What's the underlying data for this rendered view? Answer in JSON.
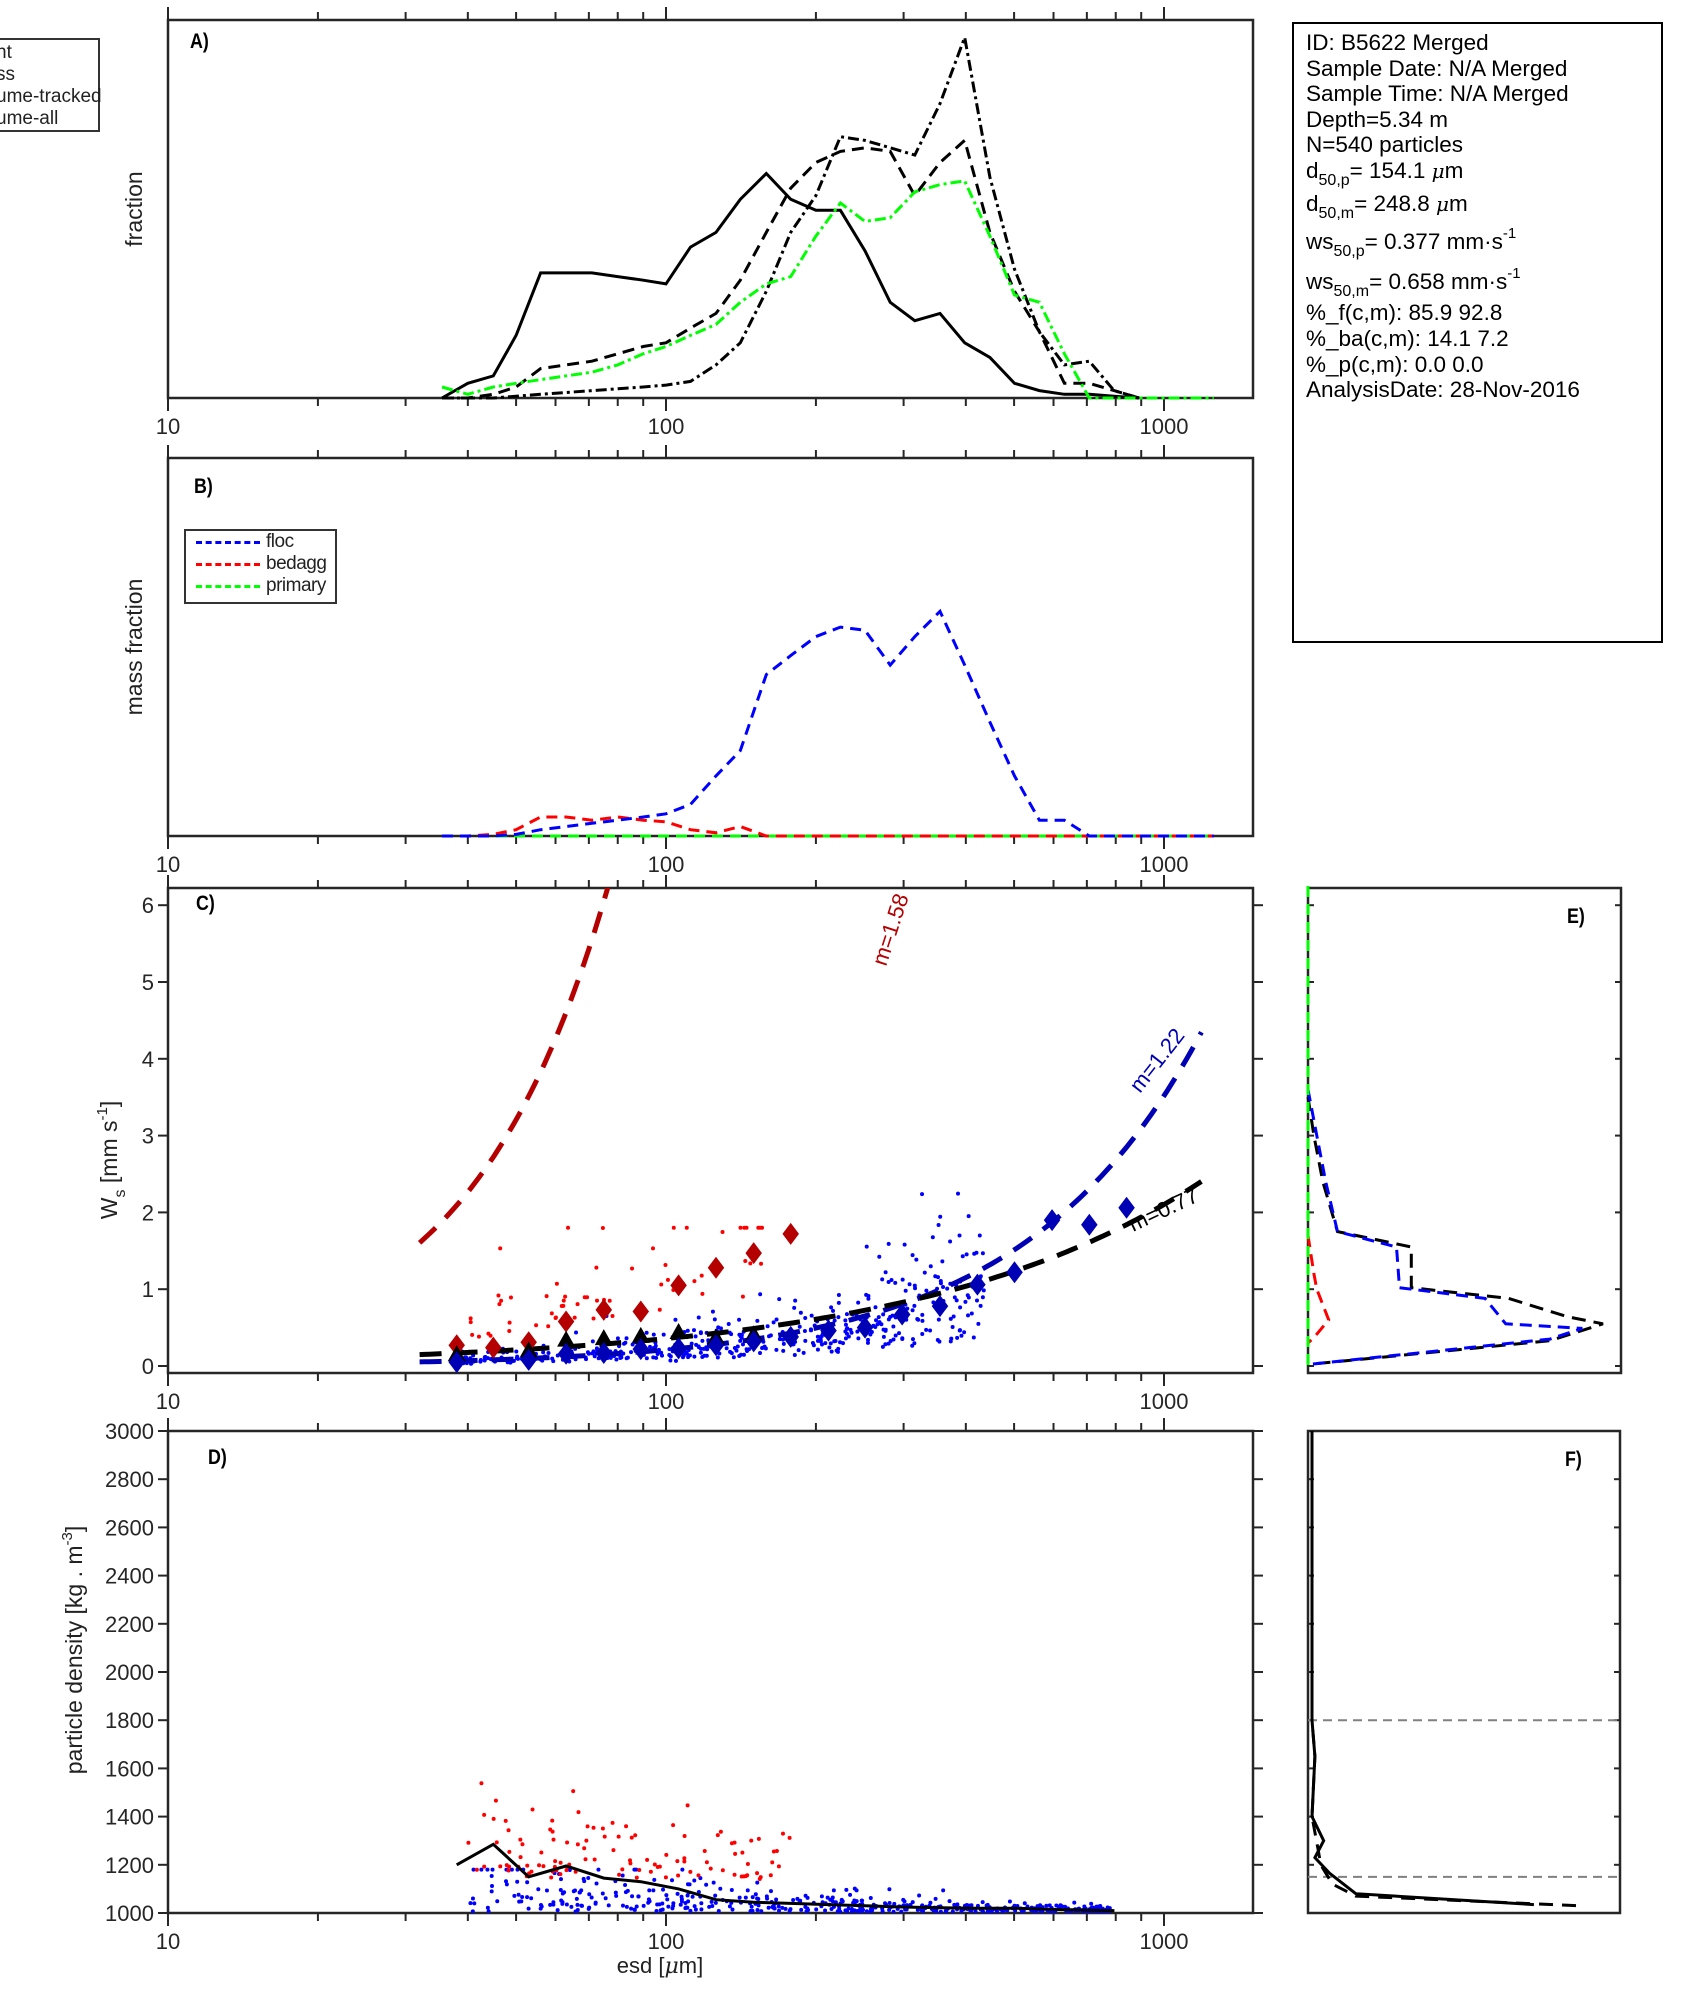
{
  "info": {
    "id": "ID: B5622 Merged",
    "sample_date": "Sample Date: N/A Merged",
    "sample_time": "Sample Time: N/A Merged",
    "depth": "Depth=5.34 m",
    "n": "N=540 particles",
    "d50p_label": "d",
    "d50p_sub": "50,p",
    "d50p_value": "= 154.1 ",
    "d50m_label": "d",
    "d50m_sub": "50,m",
    "d50m_value": "= 248.8 ",
    "ws50p_label": "ws",
    "ws50p_sub": "50,p",
    "ws50p_value": "= 0.377 mm·s",
    "ws50m_label": "ws",
    "ws50m_sub": "50,m",
    "ws50m_value": "= 0.658 mm·s",
    "unit_mu": "μ",
    "unit_m": "m",
    "sup_neg1": "-1",
    "pct_f": "%_f(c,m): 85.9 92.8",
    "pct_ba": "%_ba(c,m): 14.1 7.2",
    "pct_p": "%_p(c,m): 0.0 0.0",
    "analysis_date": "AnalysisDate: 28-Nov-2016"
  },
  "legend_a": [
    "nt",
    "ss",
    "ume-tracked",
    "ume-all"
  ],
  "legend_b": [
    {
      "label": "floc",
      "color": "#0000ff"
    },
    {
      "label": "bedagg",
      "color": "#ff0000"
    },
    {
      "label": "primary",
      "color": "#00ff00"
    }
  ],
  "colors": {
    "floc": "#0000ff",
    "bedagg": "#ff0000",
    "primary": "#00ff00",
    "floc_fit": "#0000b4",
    "bedagg_fit": "#b40000",
    "all_fit": "#000000",
    "axis": "#262626",
    "ref_line": "#808080"
  },
  "chart_data": [
    {
      "panel": "A",
      "type": "line",
      "panel_label": "A)",
      "ylabel": "fraction",
      "xlabel": "",
      "xscale": "log",
      "xlim": [
        10,
        1500
      ],
      "ylim": [
        0,
        1
      ],
      "xticklabels": [
        "10",
        "100",
        "1000"
      ],
      "x": [
        35.5,
        40,
        45,
        50,
        56,
        63,
        71,
        80,
        90,
        100,
        112,
        126,
        141,
        159,
        178,
        200,
        224,
        251,
        282,
        316,
        355,
        398,
        447,
        501,
        562,
        631,
        708,
        794,
        891,
        1000,
        1122,
        1259
      ],
      "series": [
        {
          "name": "count",
          "style": "solid",
          "values": [
            0.0,
            0.04,
            0.06,
            0.17,
            0.34,
            0.34,
            0.34,
            0.33,
            0.32,
            0.31,
            0.41,
            0.45,
            0.54,
            0.61,
            0.54,
            0.51,
            0.51,
            0.4,
            0.26,
            0.21,
            0.23,
            0.15,
            0.11,
            0.04,
            0.02,
            0.01,
            0.01,
            0.005,
            0.0,
            null,
            null,
            null
          ]
        },
        {
          "name": "mass",
          "style": "dashed",
          "values": [
            0.0,
            0.0,
            0.01,
            0.03,
            0.08,
            0.09,
            0.1,
            0.12,
            0.14,
            0.15,
            0.19,
            0.23,
            0.32,
            0.45,
            0.57,
            0.64,
            0.67,
            0.68,
            0.67,
            0.55,
            0.64,
            0.7,
            0.45,
            0.29,
            0.18,
            0.04,
            0.04,
            0.02,
            0.0,
            null,
            null,
            null
          ]
        },
        {
          "name": "volume-tracked",
          "style": "dashdot",
          "values": [
            0.0,
            0.0,
            0.0,
            0.005,
            0.01,
            0.015,
            0.02,
            0.025,
            0.03,
            0.035,
            0.045,
            0.09,
            0.15,
            0.29,
            0.45,
            0.55,
            0.71,
            0.7,
            0.68,
            0.66,
            0.8,
            0.98,
            0.6,
            0.35,
            0.18,
            0.09,
            0.1,
            0.02,
            0.0,
            null,
            null,
            null
          ]
        },
        {
          "name": "volume-all",
          "style": "dashdot",
          "color": "#00ff00",
          "values": [
            0.03,
            0.01,
            0.03,
            0.04,
            0.05,
            0.06,
            0.07,
            0.09,
            0.12,
            0.14,
            0.17,
            0.2,
            0.26,
            0.31,
            0.33,
            0.44,
            0.53,
            0.48,
            0.49,
            0.56,
            0.58,
            0.59,
            0.44,
            0.28,
            0.26,
            0.12,
            0.0,
            0.0,
            0.0,
            0.0,
            0.0,
            0.0
          ]
        }
      ]
    },
    {
      "panel": "B",
      "type": "line",
      "panel_label": "B)",
      "ylabel": "mass fraction",
      "xlabel": "",
      "xscale": "log",
      "xlim": [
        10,
        1500
      ],
      "ylim": [
        0,
        1
      ],
      "xticklabels": [
        "10",
        "100",
        "1000"
      ],
      "legend": [
        "floc",
        "bedagg",
        "primary"
      ],
      "x": [
        35.5,
        40,
        45,
        50,
        56,
        63,
        71,
        80,
        90,
        100,
        112,
        126,
        141,
        159,
        178,
        200,
        224,
        251,
        282,
        316,
        355,
        398,
        447,
        501,
        562,
        631,
        708,
        794,
        891,
        1000,
        1122,
        1259
      ],
      "series": [
        {
          "name": "floc",
          "color": "#0000ff",
          "values": [
            0.0,
            0.0,
            0.0,
            0.005,
            0.02,
            0.03,
            0.04,
            0.05,
            0.06,
            0.07,
            0.1,
            0.19,
            0.27,
            0.51,
            0.57,
            0.63,
            0.66,
            0.65,
            0.54,
            0.63,
            0.71,
            0.54,
            0.36,
            0.19,
            0.05,
            0.05,
            0.0,
            0.0,
            0.0,
            0.0,
            0.0,
            0.0
          ]
        },
        {
          "name": "bedagg",
          "color": "#ff0000",
          "values": [
            0.0,
            0.0,
            0.005,
            0.02,
            0.06,
            0.06,
            0.05,
            0.06,
            0.05,
            0.045,
            0.02,
            0.01,
            0.03,
            0.0,
            0.0,
            0.0,
            0.0,
            0.0,
            0.0,
            0.0,
            0.0,
            0.0,
            0.0,
            0.0,
            0.0,
            0.0,
            0.0,
            0.0,
            0.0,
            0.0,
            0.0,
            0.0
          ]
        },
        {
          "name": "primary",
          "color": "#00ff00",
          "values": [
            0.0,
            0.0,
            0.0,
            0.0,
            0.0,
            0.0,
            0.0,
            0.0,
            0.0,
            0.0,
            0.0,
            0.0,
            0.0,
            0.0,
            0.0,
            0.0,
            0.0,
            0.0,
            0.0,
            0.0,
            0.0,
            0.0,
            0.0,
            0.0,
            0.0,
            0.0,
            0.0,
            0.0,
            0.0,
            0.0,
            0.0,
            0.0
          ]
        }
      ]
    },
    {
      "panel": "C",
      "type": "scatter",
      "panel_label": "C)",
      "ylabel": "W_s [mm s^-1]",
      "ylabel_main": "W",
      "ylabel_sub": "s",
      "ylabel_unit": " [mm s",
      "ylabel_sup": "-1",
      "ylabel_end": "]",
      "xscale": "log",
      "xlim": [
        10,
        1500
      ],
      "ylim": [
        -0.05,
        6.25
      ],
      "yticks": [
        0,
        1,
        2,
        3,
        4,
        5,
        6
      ],
      "yticklabels": [
        "0",
        "1",
        "2",
        "3",
        "4",
        "5",
        "6"
      ],
      "xticklabels": [
        "10",
        "100",
        "1000"
      ],
      "fits": [
        {
          "name": "bedagg",
          "label": "m=1.58",
          "exponent": 1.58,
          "color": "#b40000",
          "x_range": [
            32,
            334
          ],
          "coef": 0.00655
        },
        {
          "name": "floc",
          "label": "m=1.22",
          "exponent": 1.22,
          "color": "#0000b4",
          "x_range": [
            32,
            1200
          ],
          "coef": 0.00077
        },
        {
          "name": "all",
          "label": "m=0.77",
          "exponent": 0.77,
          "color": "#000000",
          "x_range": [
            32,
            1200
          ],
          "coef": 0.0103
        }
      ],
      "binned_bedagg": {
        "x": [
          38,
          45,
          53,
          63,
          75,
          89,
          106,
          126,
          150,
          178
        ],
        "y": [
          0.27,
          0.24,
          0.31,
          0.58,
          0.73,
          0.71,
          1.05,
          1.28,
          1.47,
          1.72
        ]
      },
      "binned_all": {
        "x": [
          38,
          53,
          63,
          75,
          89,
          106,
          126,
          150
        ],
        "y": [
          0.14,
          0.19,
          0.33,
          0.35,
          0.38,
          0.43,
          0.36,
          0.4
        ]
      },
      "binned_floc": {
        "x": [
          38,
          53,
          63,
          75,
          89,
          106,
          126,
          150,
          178,
          212,
          251,
          298,
          355,
          422,
          501,
          596,
          708,
          841
        ],
        "y": [
          0.05,
          0.08,
          0.16,
          0.17,
          0.22,
          0.23,
          0.27,
          0.32,
          0.38,
          0.46,
          0.5,
          0.67,
          0.78,
          1.06,
          1.22,
          1.9,
          1.84,
          2.06
        ]
      },
      "scatter_bedagg_count": 60,
      "scatter_floc_count": 480
    },
    {
      "panel": "D",
      "type": "scatter",
      "panel_label": "D)",
      "ylabel": "particle density [kg . m^-3]",
      "ylabel_main": "particle density [kg . m",
      "ylabel_sup": "-3",
      "ylabel_end": "]",
      "xlabel": "esd [μm]",
      "xlabel_main": "esd [",
      "xlabel_mu": "μ",
      "xlabel_end": "m]",
      "xscale": "log",
      "xlim": [
        10,
        1500
      ],
      "ylim": [
        1000,
        3000
      ],
      "yticks": [
        1000,
        1200,
        1400,
        1600,
        1800,
        2000,
        2200,
        2400,
        2600,
        2800,
        3000
      ],
      "yticklabels": [
        "1000",
        "1200",
        "1400",
        "1600",
        "1800",
        "2000",
        "2200",
        "2400",
        "2600",
        "2800",
        "3000"
      ],
      "xticklabels": [
        "10",
        "100",
        "1000"
      ],
      "median_line": {
        "x": [
          38,
          45,
          53,
          63,
          75,
          89,
          106,
          126,
          150,
          178,
          212,
          251,
          298,
          355,
          422,
          501,
          596,
          708,
          795
        ],
        "y": [
          1200,
          1285,
          1150,
          1195,
          1145,
          1130,
          1100,
          1055,
          1045,
          1040,
          1035,
          1030,
          1025,
          1022,
          1020,
          1020,
          1015,
          1012,
          1010
        ]
      }
    },
    {
      "panel": "E",
      "type": "line",
      "panel_label": "E)",
      "orientation": "horizontal-distribution",
      "ylim": [
        -0.05,
        6.25
      ],
      "series": [
        {
          "name": "all",
          "color": "#000000",
          "points": [
            [
              0.0,
              3.5
            ],
            [
              0.02,
              3.0
            ],
            [
              0.05,
              2.4
            ],
            [
              0.1,
              1.75
            ],
            [
              0.35,
              1.55
            ],
            [
              0.35,
              1.02
            ],
            [
              0.68,
              0.88
            ],
            [
              0.88,
              0.64
            ],
            [
              1.0,
              0.55
            ],
            [
              0.82,
              0.33
            ],
            [
              0.0,
              0.02
            ]
          ]
        },
        {
          "name": "floc",
          "color": "#0000ff",
          "points": [
            [
              0.0,
              3.6
            ],
            [
              0.03,
              3.0
            ],
            [
              0.06,
              2.4
            ],
            [
              0.1,
              1.75
            ],
            [
              0.3,
              1.55
            ],
            [
              0.31,
              1.02
            ],
            [
              0.6,
              0.88
            ],
            [
              0.67,
              0.55
            ],
            [
              0.93,
              0.49
            ],
            [
              0.82,
              0.35
            ],
            [
              0.0,
              0.02
            ]
          ]
        },
        {
          "name": "bedagg",
          "color": "#ff0000",
          "points": [
            [
              0.0,
              1.7
            ],
            [
              0.02,
              1.2
            ],
            [
              0.03,
              1.0
            ],
            [
              0.07,
              0.6
            ],
            [
              0.02,
              0.37
            ],
            [
              0.0,
              0.3
            ]
          ]
        },
        {
          "name": "primary",
          "color": "#00ff00",
          "points": [
            [
              0.0,
              6.25
            ],
            [
              0.0,
              0.0
            ]
          ]
        }
      ]
    },
    {
      "panel": "F",
      "type": "line",
      "panel_label": "F)",
      "orientation": "horizontal-distribution",
      "ylim": [
        1000,
        3000
      ],
      "reference_lines": [
        1800,
        1150
      ],
      "series": [
        {
          "name": "count",
          "style": "solid",
          "points": [
            [
              0.0,
              3000
            ],
            [
              0.0,
              1800
            ],
            [
              0.01,
              1650
            ],
            [
              0.0,
              1400
            ],
            [
              0.04,
              1300
            ],
            [
              0.01,
              1230
            ],
            [
              0.06,
              1165
            ],
            [
              0.15,
              1080
            ],
            [
              0.76,
              1035
            ]
          ]
        },
        {
          "name": "mass",
          "style": "dashed",
          "points": [
            [
              0.0,
              3000
            ],
            [
              0.0,
              1800
            ],
            [
              0.01,
              1650
            ],
            [
              0.0,
              1400
            ],
            [
              0.02,
              1270
            ],
            [
              0.03,
              1200
            ],
            [
              0.07,
              1120
            ],
            [
              0.15,
              1070
            ],
            [
              0.92,
              1030
            ]
          ]
        }
      ]
    }
  ]
}
